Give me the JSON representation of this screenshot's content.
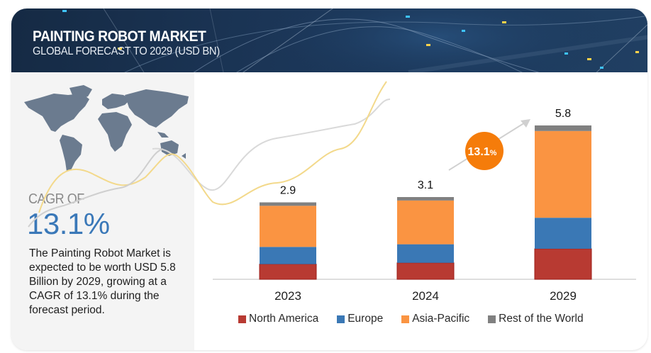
{
  "header": {
    "title": "PAINTING ROBOT MARKET",
    "subtitle": "GLOBAL FORECAST TO 2029 (USD BN)"
  },
  "summary": {
    "cagr_label": "CAGR OF",
    "cagr_value": "13.1%",
    "description": "The Painting Robot Market is expected to be worth USD 5.8 Billion by 2029, growing at a CAGR of 13.1% during the forecast period.",
    "map_icon": "world-map-icon"
  },
  "badge": {
    "value": "13.1",
    "unit": "%",
    "color": "#f57c0a"
  },
  "chart_data": {
    "type": "bar",
    "stacked": true,
    "title": "Painting Robot Market, Global Forecast to 2029 (USD BN)",
    "xlabel": "",
    "ylabel": "",
    "categories": [
      "2023",
      "2024",
      "2029"
    ],
    "totals": [
      "2.9",
      "3.1",
      "5.8"
    ],
    "series": [
      {
        "name": "North America",
        "color": "#b83a32",
        "values": [
          0.57,
          0.62,
          1.15
        ]
      },
      {
        "name": "Europe",
        "color": "#3a78b5",
        "values": [
          0.65,
          0.7,
          1.17
        ]
      },
      {
        "name": "Asia-Pacific",
        "color": "#fa9442",
        "values": [
          1.55,
          1.65,
          3.27
        ]
      },
      {
        "name": "Rest of the World",
        "color": "#808080",
        "values": [
          0.13,
          0.13,
          0.21
        ]
      }
    ],
    "ylim": [
      0,
      6.2
    ],
    "grid": false,
    "legend_position": "bottom",
    "annotation": "13.1% CAGR arrow"
  }
}
